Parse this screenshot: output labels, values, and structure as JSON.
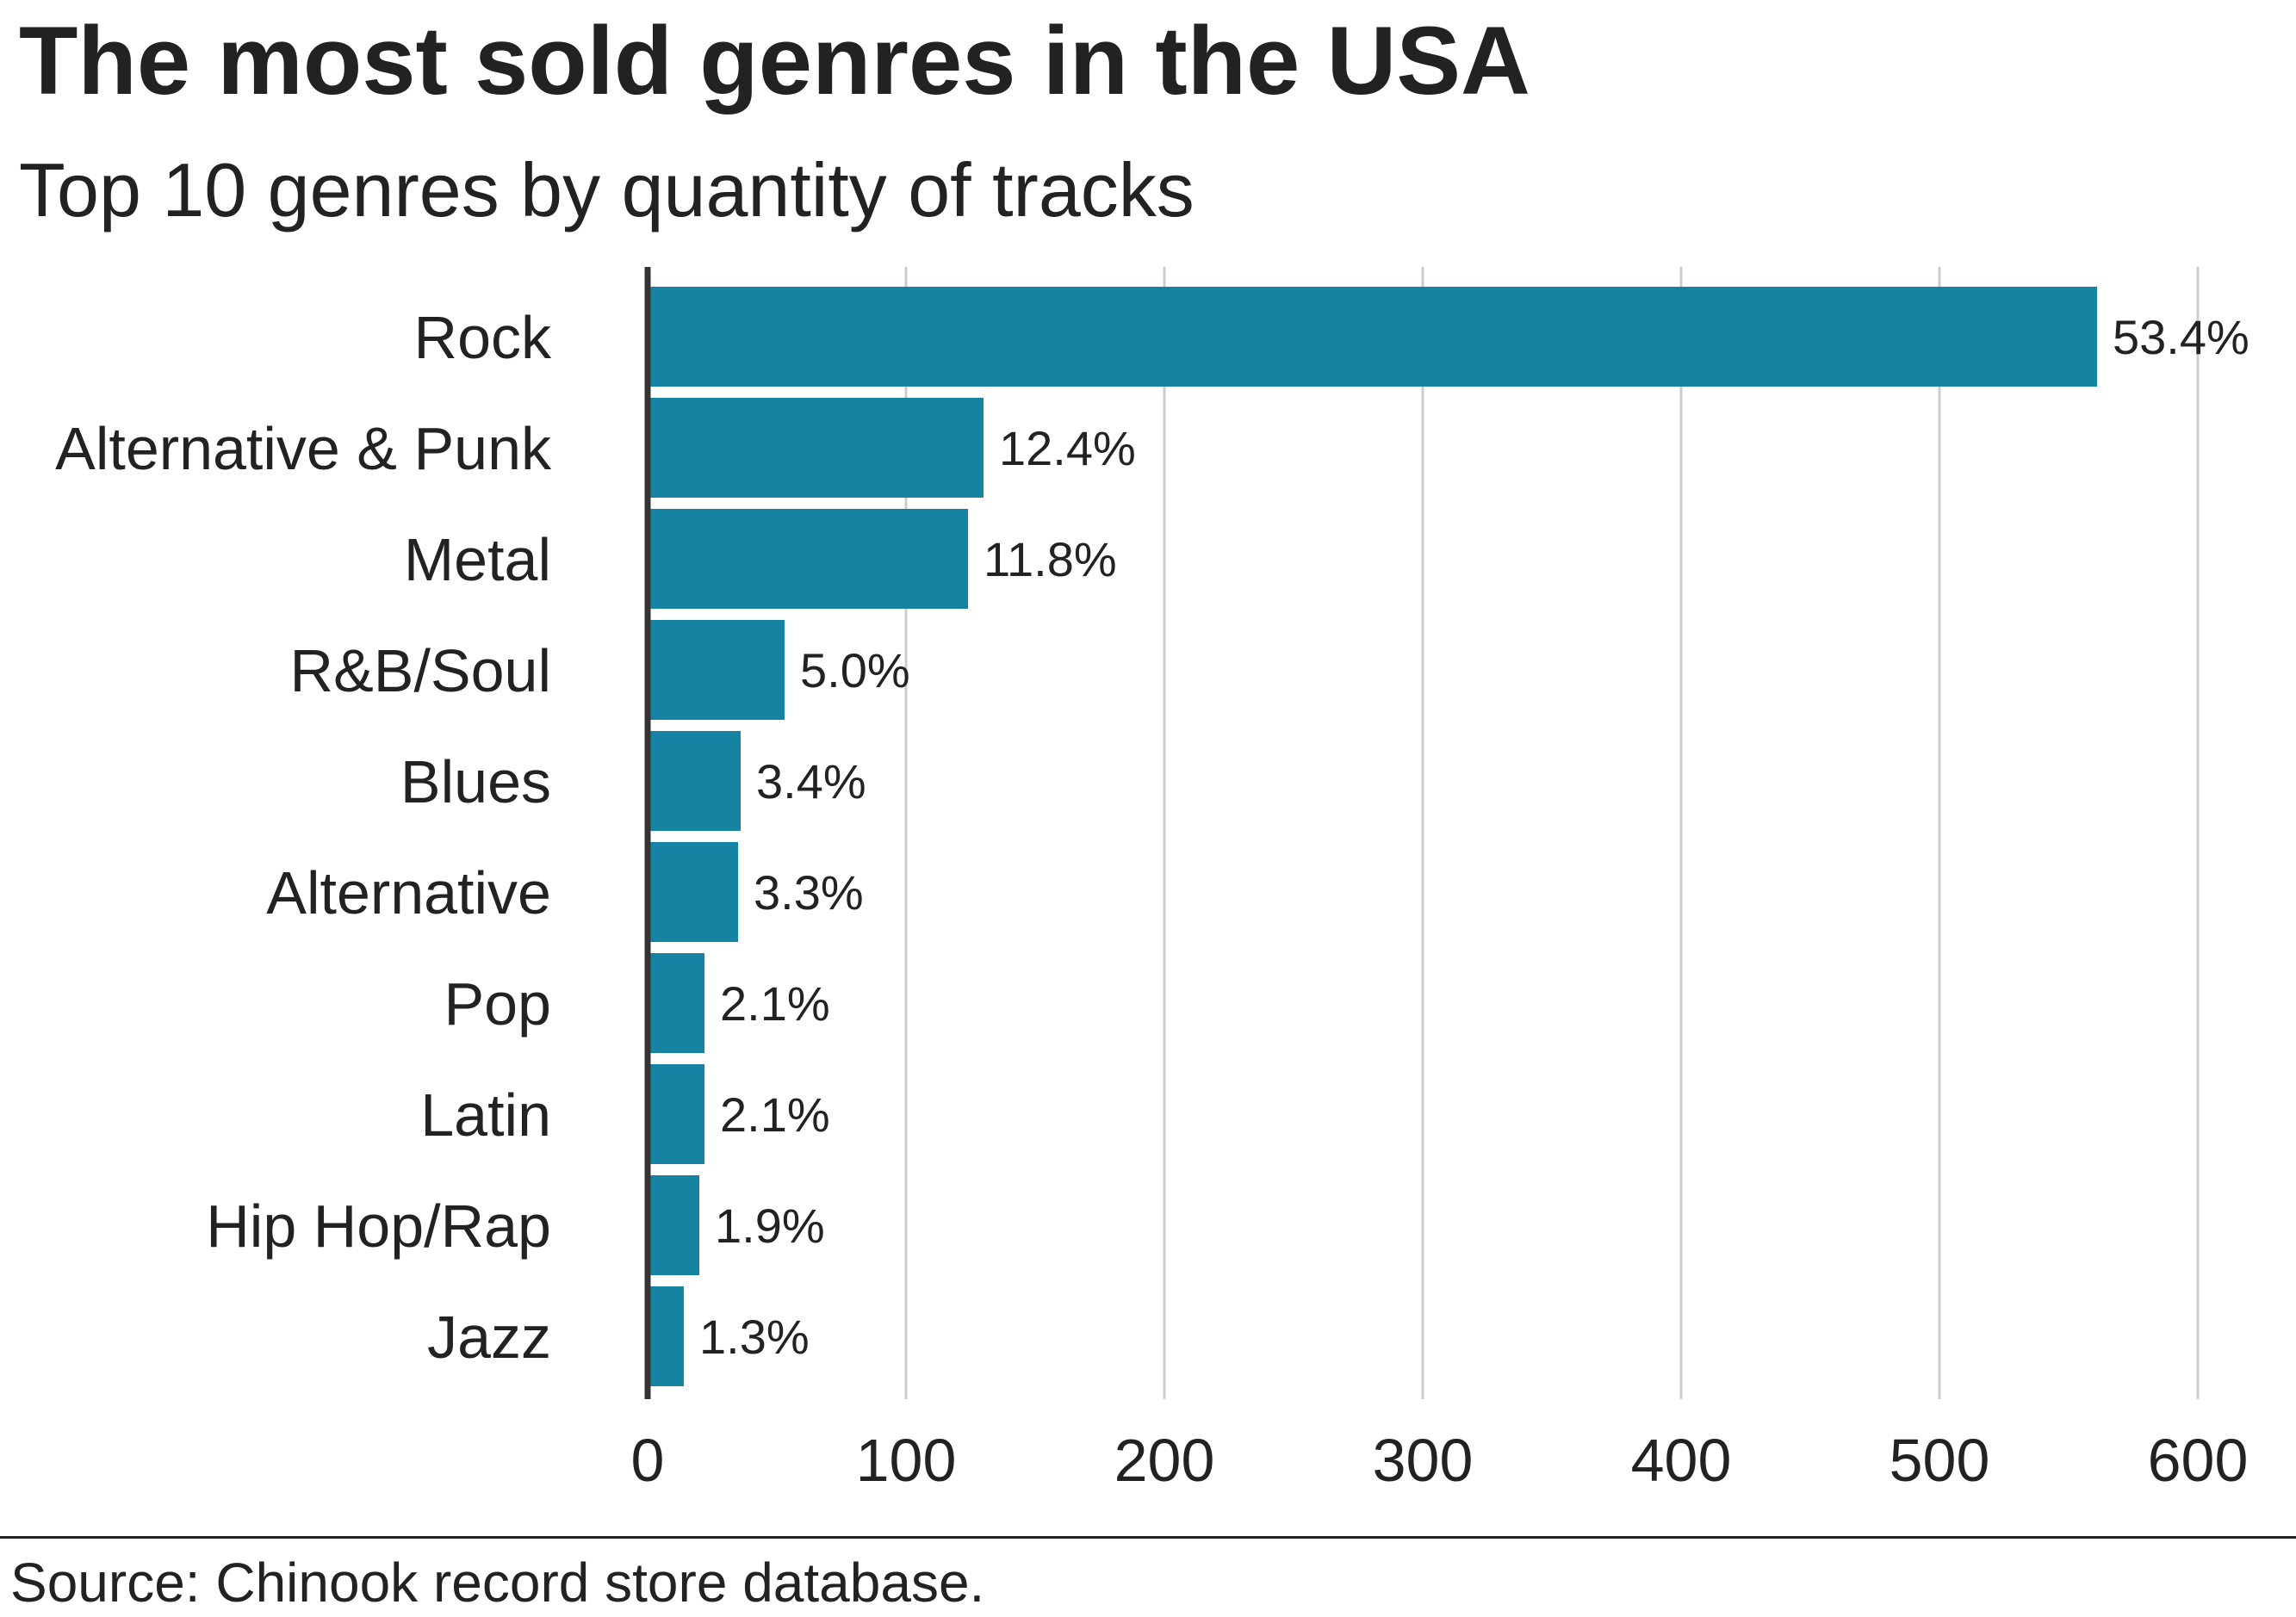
{
  "chart_data": {
    "type": "bar",
    "orientation": "horizontal",
    "title": "The most sold genres in the USA",
    "subtitle": "Top 10 genres by quantity of tracks",
    "categories": [
      "Rock",
      "Alternative & Punk",
      "Metal",
      "R&B/Soul",
      "Blues",
      "Alternative",
      "Pop",
      "Latin",
      "Hip Hop/Rap",
      "Jazz"
    ],
    "values": [
      561,
      130,
      124,
      53,
      36,
      35,
      22,
      22,
      20,
      14
    ],
    "data_labels": [
      "53.4%",
      "12.4%",
      "11.8%",
      "5.0%",
      "3.4%",
      "3.3%",
      "2.1%",
      "2.1%",
      "1.9%",
      "1.3%"
    ],
    "xlim": [
      0,
      600
    ],
    "xticks": [
      "0",
      "100",
      "200",
      "300",
      "400",
      "500",
      "600"
    ],
    "xlabel": "",
    "ylabel": "",
    "grid": "vertical",
    "bar_color": "#1783a2",
    "source": "Source: Chinook record store database."
  }
}
